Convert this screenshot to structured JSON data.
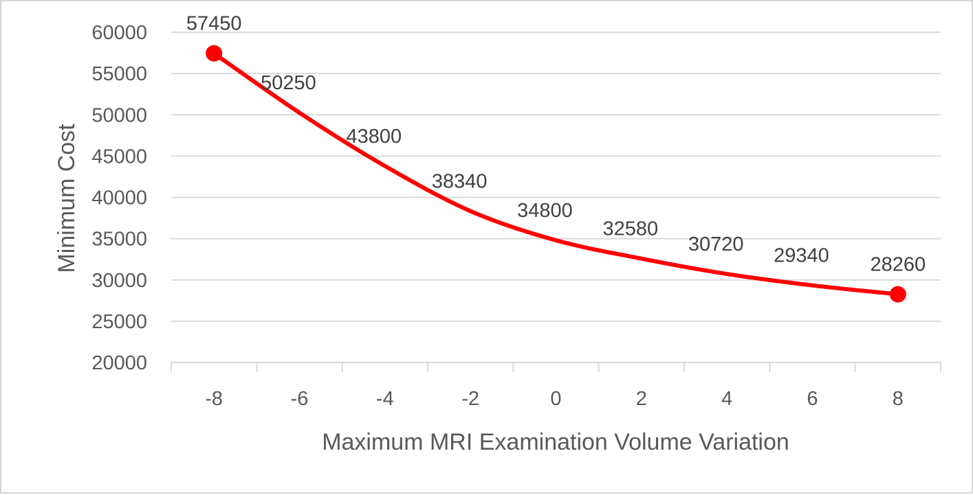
{
  "chart_data": {
    "type": "line",
    "title": "",
    "xlabel": "Maximum MRI Examination Volume Variation",
    "ylabel": "Minimum Cost",
    "x": [
      -8,
      -6,
      -4,
      -2,
      0,
      2,
      4,
      6,
      8
    ],
    "x_tick_labels": [
      "-8",
      "-6",
      "-4",
      "-2",
      "0",
      "2",
      "4",
      "6",
      "8"
    ],
    "series": [
      {
        "values": [
          57450,
          50250,
          43800,
          38340,
          34800,
          32580,
          30720,
          29340,
          28260
        ],
        "data_labels": [
          "57450",
          "50250",
          "43800",
          "38340",
          "34800",
          "32580",
          "30720",
          "29340",
          "28260"
        ],
        "color": "#ff0000",
        "markers_at": "endpoints"
      }
    ],
    "ylim": [
      20000,
      60000
    ],
    "y_ticks": [
      20000,
      25000,
      30000,
      35000,
      40000,
      45000,
      50000,
      55000,
      60000
    ],
    "y_tick_labels": [
      "20000",
      "25000",
      "30000",
      "35000",
      "40000",
      "45000",
      "50000",
      "55000",
      "60000"
    ],
    "grid": "horizontal",
    "grid_color": "#d9d9d9",
    "legend": "none"
  }
}
